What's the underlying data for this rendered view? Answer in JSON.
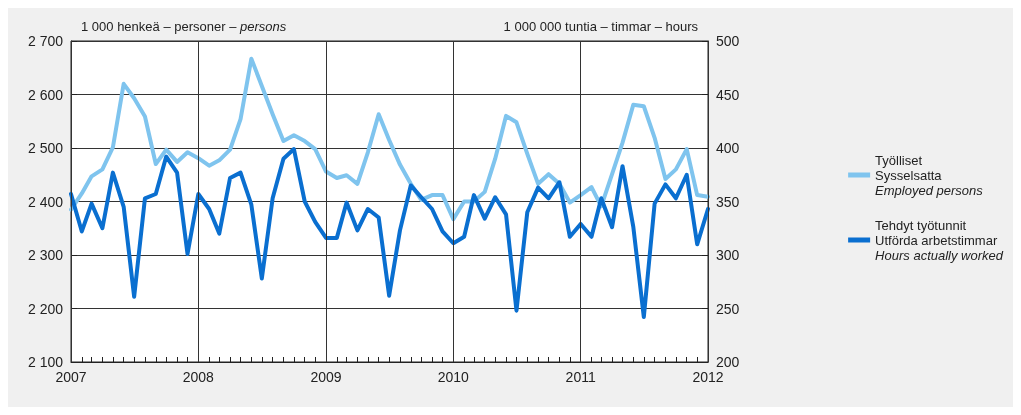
{
  "chart_data": {
    "type": "line",
    "xlim": [
      "2007-01",
      "2012-01"
    ],
    "xticks": [
      "2007",
      "2008",
      "2009",
      "2010",
      "2011",
      "2012"
    ],
    "ylabel": "1 000 henkeä – personer – persons",
    "y2label": "1 000 000 tuntia – timmar – hours",
    "ylim": [
      2100,
      2700
    ],
    "yticks": [
      {
        "value": 2100,
        "label": "2 100"
      },
      {
        "value": 2200,
        "label": "2 200"
      },
      {
        "value": 2300,
        "label": "2 300"
      },
      {
        "value": 2400,
        "label": "2 400"
      },
      {
        "value": 2500,
        "label": "2 500"
      },
      {
        "value": 2600,
        "label": "2 600"
      },
      {
        "value": 2700,
        "label": "2 700"
      }
    ],
    "y2lim": [
      200,
      500
    ],
    "y2ticks": [
      200,
      250,
      300,
      350,
      400,
      450,
      500
    ],
    "grid": true,
    "legend": "right",
    "marker": "none",
    "line_style": "solid",
    "x": [
      "2007-01",
      "2007-02",
      "2007-03",
      "2007-04",
      "2007-05",
      "2007-06",
      "2007-07",
      "2007-08",
      "2007-09",
      "2007-10",
      "2007-11",
      "2007-12",
      "2008-01",
      "2008-02",
      "2008-03",
      "2008-04",
      "2008-05",
      "2008-06",
      "2008-07",
      "2008-08",
      "2008-09",
      "2008-10",
      "2008-11",
      "2008-12",
      "2009-01",
      "2009-02",
      "2009-03",
      "2009-04",
      "2009-05",
      "2009-06",
      "2009-07",
      "2009-08",
      "2009-09",
      "2009-10",
      "2009-11",
      "2009-12",
      "2010-01",
      "2010-02",
      "2010-03",
      "2010-04",
      "2010-05",
      "2010-06",
      "2010-07",
      "2010-08",
      "2010-09",
      "2010-10",
      "2010-11",
      "2010-12",
      "2011-01",
      "2011-02",
      "2011-03",
      "2011-04",
      "2011-05",
      "2011-06",
      "2011-07",
      "2011-08",
      "2011-09",
      "2011-10",
      "2011-11",
      "2011-12",
      "2012-01"
    ],
    "series": [
      {
        "name": "Työlliset\nSysselsatta\nEmployed persons",
        "color": "#7fc4ee",
        "values": [
          2385,
          2415,
          2447,
          2460,
          2501,
          2620,
          2593,
          2559,
          2470,
          2497,
          2474,
          2492,
          2481,
          2467,
          2477,
          2497,
          2554,
          2667,
          2616,
          2563,
          2513,
          2524,
          2513,
          2498,
          2456,
          2444,
          2449,
          2433,
          2492,
          2563,
          2515,
          2469,
          2433,
          2403,
          2412,
          2412,
          2367,
          2400,
          2400,
          2418,
          2480,
          2560,
          2548,
          2489,
          2433,
          2451,
          2433,
          2398,
          2412,
          2427,
          2391,
          2451,
          2510,
          2581,
          2578,
          2519,
          2442,
          2460,
          2498,
          2412,
          2409
        ]
      },
      {
        "name": "Tehdyt työtunnit\nUtförda arbetstimmar\nHours actually worked",
        "color": "#0a6fd0",
        "axis": "y2",
        "values": [
          357,
          322,
          348,
          325,
          377,
          345,
          261,
          353,
          357,
          392,
          377,
          301,
          357,
          343,
          320,
          372,
          377,
          347,
          278,
          353,
          390,
          399,
          350,
          331,
          316,
          316,
          349,
          323,
          343,
          335,
          262,
          323,
          365,
          354,
          343,
          322,
          311,
          317,
          356,
          334,
          354,
          338,
          248,
          340,
          363,
          353,
          368,
          317,
          329,
          317,
          353,
          326,
          383,
          326,
          242,
          348,
          366,
          353,
          375,
          310,
          343
        ]
      }
    ]
  }
}
